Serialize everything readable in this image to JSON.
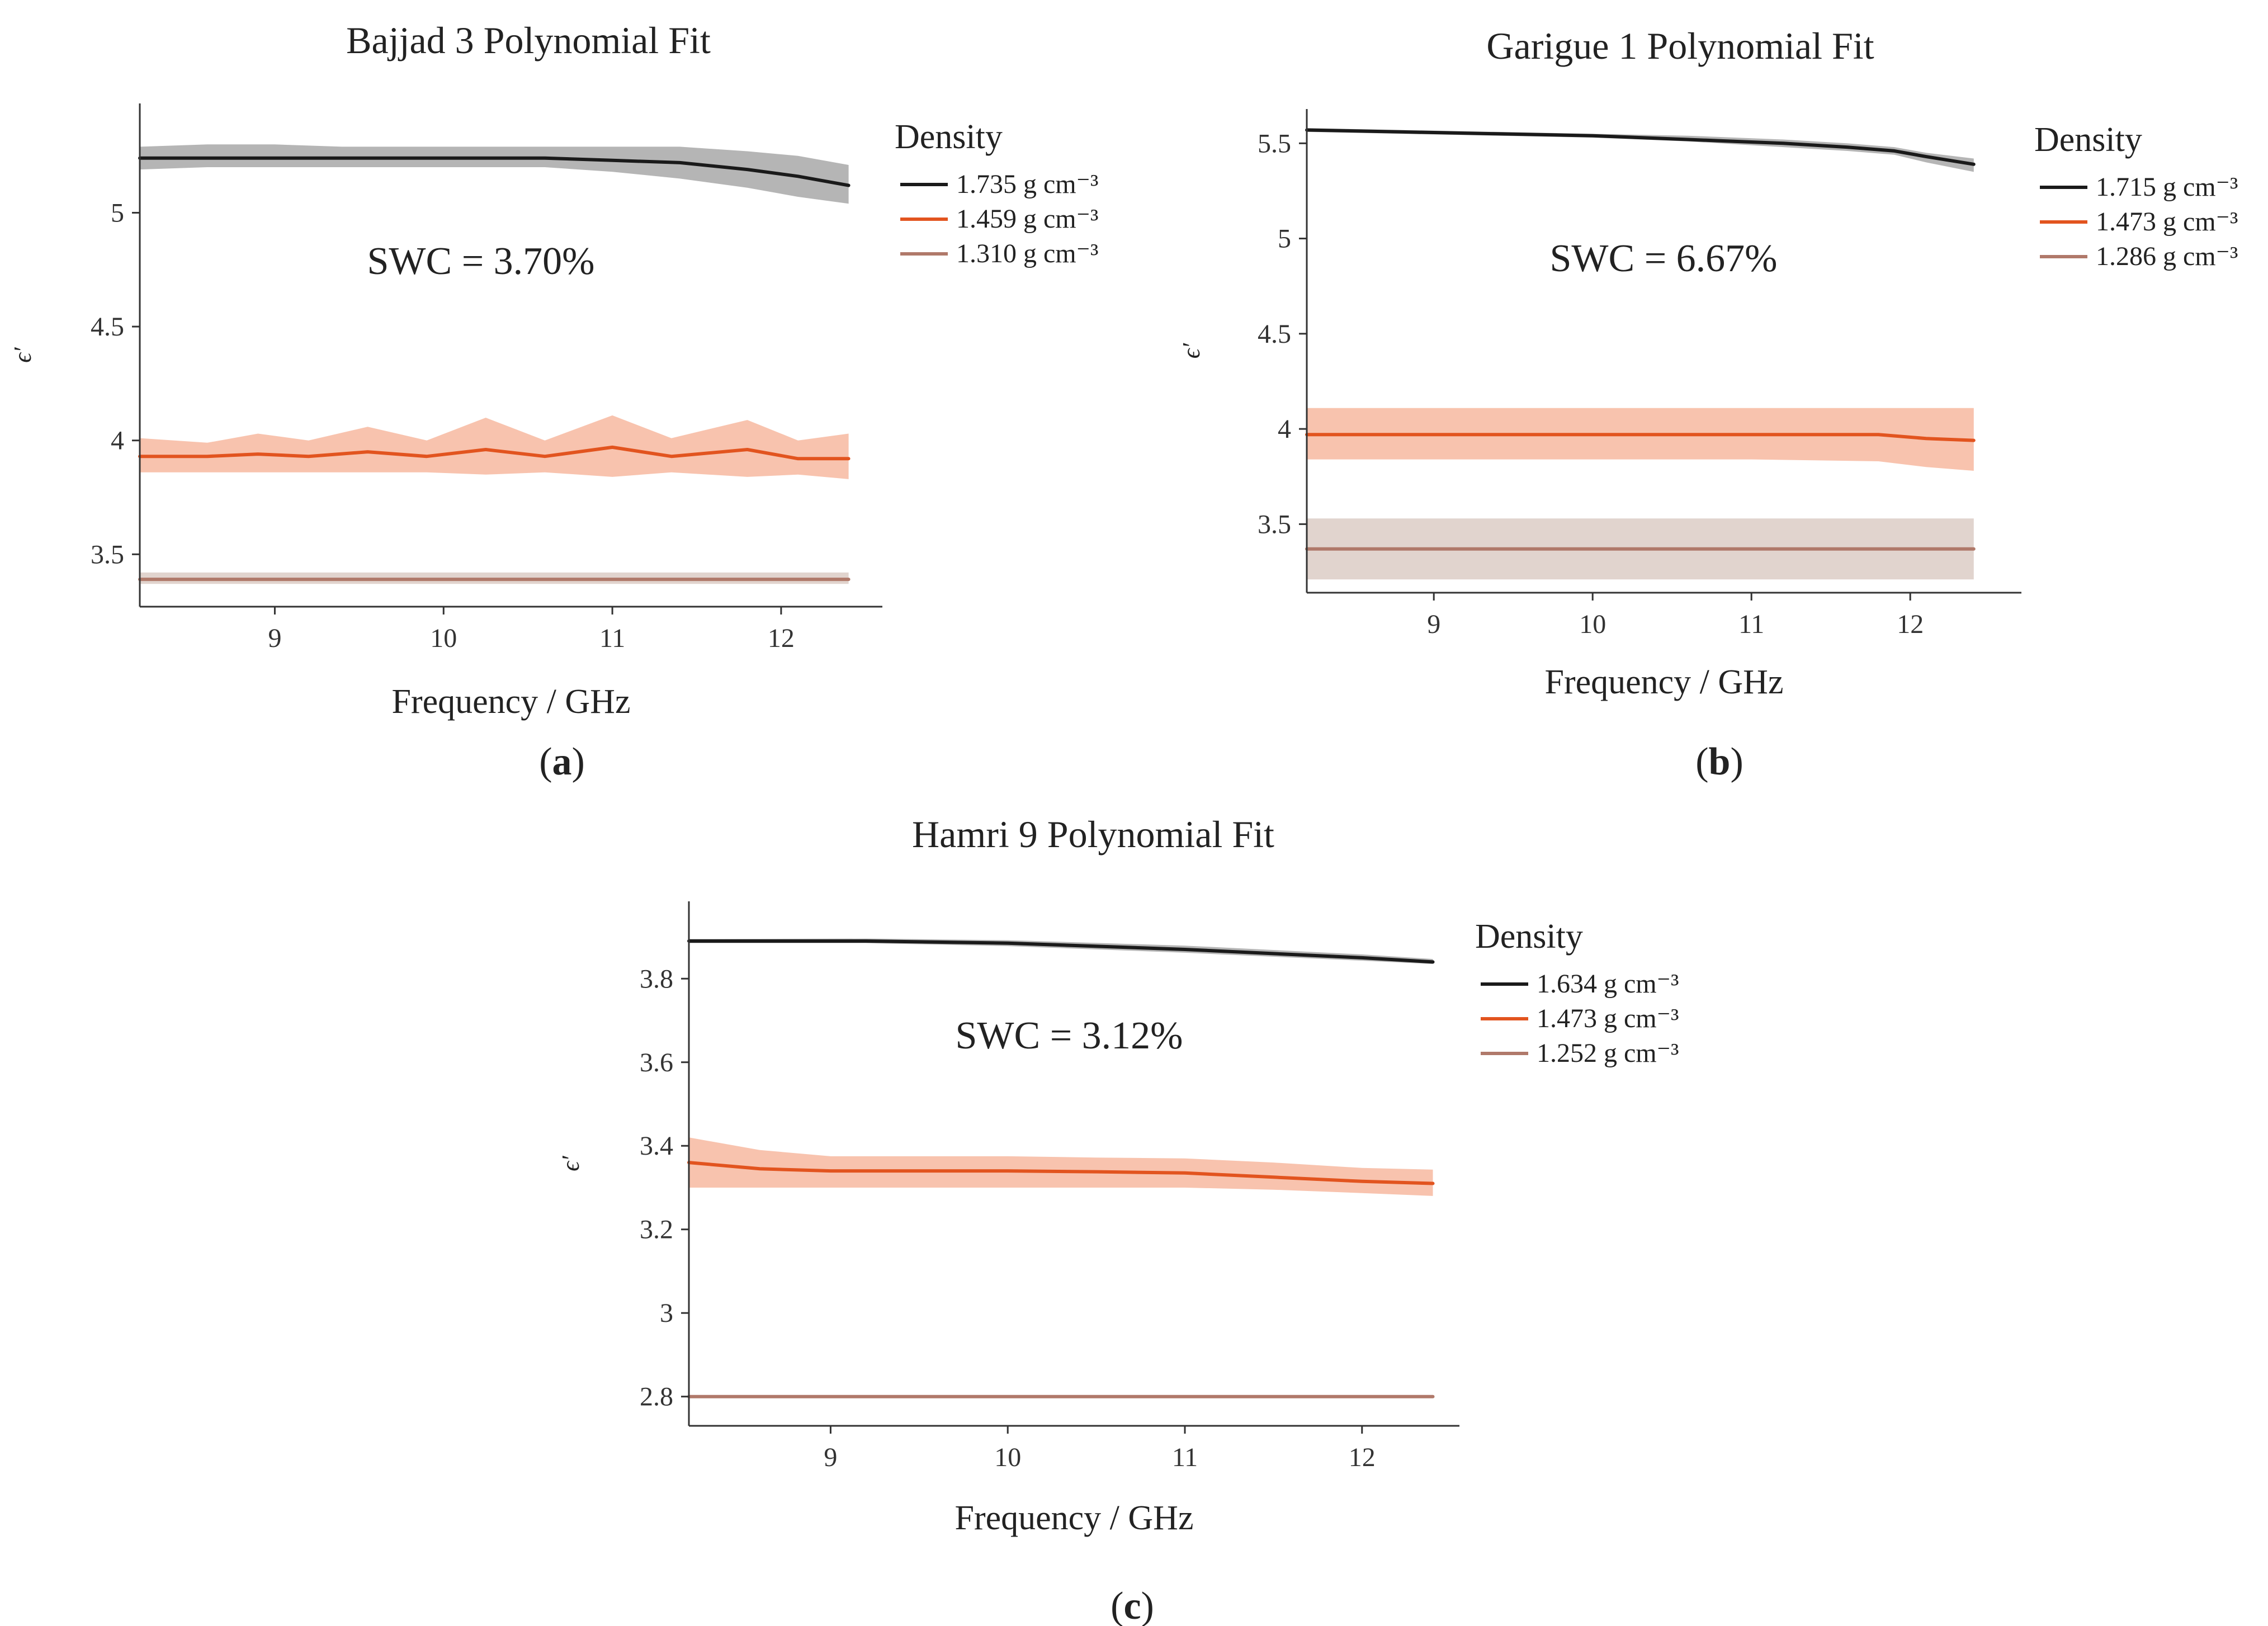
{
  "chart_data": [
    {
      "type": "line",
      "title": "Bajjad 3 Polynomial Fit",
      "xlabel": "Frequency / GHz",
      "ylabel": "ϵ′",
      "xlim": [
        8.2,
        12.6
      ],
      "ylim": [
        3.27,
        5.48
      ],
      "xticks": [
        "9",
        "10",
        "11",
        "12"
      ],
      "yticks": [
        "3.5",
        "4",
        "4.5",
        "5"
      ],
      "annotation": "SWC = 3.70%",
      "legend_title": "Density",
      "caption_letter": "a",
      "series": [
        {
          "name": "1.735 g cm⁻³",
          "color": "#1a1a1a",
          "band": "#a8a8a8",
          "x": [
            8.2,
            8.6,
            9.0,
            9.4,
            9.8,
            10.2,
            10.6,
            11.0,
            11.4,
            11.8,
            12.1,
            12.4
          ],
          "y": [
            5.24,
            5.24,
            5.24,
            5.24,
            5.24,
            5.24,
            5.24,
            5.23,
            5.22,
            5.19,
            5.16,
            5.12
          ],
          "lower": [
            5.19,
            5.2,
            5.2,
            5.2,
            5.2,
            5.2,
            5.2,
            5.18,
            5.15,
            5.11,
            5.07,
            5.04
          ],
          "upper": [
            5.29,
            5.3,
            5.3,
            5.29,
            5.29,
            5.29,
            5.29,
            5.29,
            5.29,
            5.27,
            5.25,
            5.21
          ]
        },
        {
          "name": "1.459 g cm⁻³",
          "color": "#e2541f",
          "band": "#f7b8a0",
          "x": [
            8.2,
            8.6,
            8.9,
            9.2,
            9.55,
            9.9,
            10.25,
            10.6,
            11.0,
            11.35,
            11.8,
            12.1,
            12.4
          ],
          "y": [
            3.93,
            3.93,
            3.94,
            3.93,
            3.95,
            3.93,
            3.96,
            3.93,
            3.97,
            3.93,
            3.96,
            3.92,
            3.92
          ],
          "lower": [
            3.86,
            3.86,
            3.86,
            3.86,
            3.86,
            3.86,
            3.85,
            3.86,
            3.84,
            3.86,
            3.84,
            3.85,
            3.83
          ],
          "upper": [
            4.01,
            3.99,
            4.03,
            4.0,
            4.06,
            4.0,
            4.1,
            4.0,
            4.11,
            4.01,
            4.09,
            4.0,
            4.03
          ]
        },
        {
          "name": "1.310 g cm⁻³",
          "color": "#b0796a",
          "band": "#dccdc6",
          "x": [
            8.2,
            12.4
          ],
          "y": [
            3.39,
            3.39
          ],
          "lower": [
            3.37,
            3.37
          ],
          "upper": [
            3.42,
            3.42
          ]
        }
      ]
    },
    {
      "type": "line",
      "title": "Garigue 1 Polynomial Fit",
      "xlabel": "Frequency / GHz",
      "ylabel": "ϵ′",
      "xlim": [
        8.2,
        12.7
      ],
      "ylim": [
        3.14,
        5.68
      ],
      "xticks": [
        "9",
        "10",
        "11",
        "12"
      ],
      "yticks": [
        "3.5",
        "4",
        "4.5",
        "5",
        "5.5"
      ],
      "annotation": "SWC = 6.67%",
      "legend_title": "Density",
      "caption_letter": "b",
      "series": [
        {
          "name": "1.715 g cm⁻³",
          "color": "#1a1a1a",
          "band": "#a8a8a8",
          "x": [
            8.2,
            8.8,
            9.4,
            10.0,
            10.6,
            11.2,
            11.6,
            11.9,
            12.1,
            12.4
          ],
          "y": [
            5.57,
            5.56,
            5.55,
            5.54,
            5.52,
            5.5,
            5.48,
            5.46,
            5.43,
            5.39
          ],
          "lower": [
            5.56,
            5.55,
            5.54,
            5.53,
            5.51,
            5.48,
            5.46,
            5.44,
            5.4,
            5.35
          ],
          "upper": [
            5.58,
            5.57,
            5.56,
            5.55,
            5.54,
            5.52,
            5.5,
            5.48,
            5.45,
            5.42
          ]
        },
        {
          "name": "1.473 g cm⁻³",
          "color": "#e2541f",
          "band": "#f7b8a0",
          "x": [
            8.2,
            9.0,
            10.0,
            11.0,
            11.8,
            12.1,
            12.4
          ],
          "y": [
            3.97,
            3.97,
            3.97,
            3.97,
            3.97,
            3.95,
            3.94
          ],
          "lower": [
            3.84,
            3.84,
            3.84,
            3.84,
            3.83,
            3.8,
            3.78
          ],
          "upper": [
            4.11,
            4.11,
            4.11,
            4.11,
            4.11,
            4.11,
            4.11
          ]
        },
        {
          "name": "1.286 g cm⁻³",
          "color": "#b0796a",
          "band": "#dccdc6",
          "x": [
            8.2,
            12.4
          ],
          "y": [
            3.37,
            3.37
          ],
          "lower": [
            3.21,
            3.21
          ],
          "upper": [
            3.53,
            3.53
          ]
        }
      ]
    },
    {
      "type": "line",
      "title": "Hamri 9 Polynomial Fit",
      "xlabel": "Frequency / GHz",
      "ylabel": "ϵ′",
      "xlim": [
        8.2,
        12.55
      ],
      "ylim": [
        2.73,
        3.985
      ],
      "xticks": [
        "9",
        "10",
        "11",
        "12"
      ],
      "yticks": [
        "2.8",
        "3",
        "3.2",
        "3.4",
        "3.6",
        "3.8"
      ],
      "annotation": "SWC = 3.12%",
      "legend_title": "Density",
      "caption_letter": "c",
      "series": [
        {
          "name": "1.634 g cm⁻³",
          "color": "#1a1a1a",
          "band": "#a8a8a8",
          "x": [
            8.2,
            9.2,
            10.0,
            11.0,
            12.0,
            12.4
          ],
          "y": [
            3.89,
            3.89,
            3.885,
            3.87,
            3.85,
            3.84
          ],
          "lower": [
            3.885,
            3.885,
            3.878,
            3.862,
            3.843,
            3.835
          ],
          "upper": [
            3.895,
            3.896,
            3.892,
            3.879,
            3.858,
            3.847
          ]
        },
        {
          "name": "1.473 g cm⁻³",
          "color": "#e2541f",
          "band": "#f7b8a0",
          "x": [
            8.2,
            8.6,
            9.0,
            9.5,
            10.0,
            10.5,
            11.0,
            11.5,
            12.0,
            12.4
          ],
          "y": [
            3.36,
            3.345,
            3.34,
            3.34,
            3.34,
            3.338,
            3.335,
            3.325,
            3.315,
            3.31
          ],
          "lower": [
            3.3,
            3.3,
            3.3,
            3.3,
            3.3,
            3.3,
            3.3,
            3.295,
            3.287,
            3.28
          ],
          "upper": [
            3.42,
            3.39,
            3.375,
            3.375,
            3.375,
            3.372,
            3.37,
            3.36,
            3.347,
            3.343
          ]
        },
        {
          "name": "1.252 g cm⁻³",
          "color": "#b0796a",
          "band": "#dccdc6",
          "x": [
            8.2,
            12.4
          ],
          "y": [
            2.8,
            2.8
          ],
          "lower": [
            2.797,
            2.797
          ],
          "upper": [
            2.803,
            2.803
          ]
        }
      ]
    }
  ]
}
